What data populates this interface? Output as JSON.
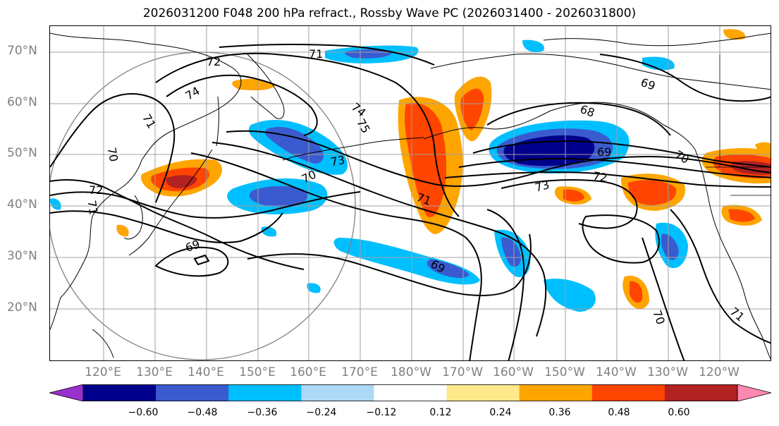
{
  "title": "2026031200 F048 200 hPa refract., Rossby Wave PC (2026031400 - 2026031800)",
  "lat_labels": [
    "70°N",
    "60°N",
    "50°N",
    "40°N",
    "30°N",
    "20°N"
  ],
  "lon_labels": [
    "120°E",
    "130°E",
    "140°E",
    "150°E",
    "160°E",
    "170°E",
    "180°W",
    "170°W",
    "160°W",
    "150°W",
    "140°W",
    "130°W",
    "120°W"
  ],
  "contour_labels": [
    "72",
    "71",
    "74",
    "71",
    "70",
    "72",
    "71",
    "69",
    "74",
    "75",
    "73",
    "70",
    "71",
    "69",
    "68",
    "69",
    "70",
    "72",
    "73",
    "69",
    "70",
    "71"
  ],
  "colorbar": {
    "ticks": [
      "−0.60",
      "−0.48",
      "−0.36",
      "−0.24",
      "−0.12",
      "0.12",
      "0.24",
      "0.36",
      "0.48",
      "0.60"
    ],
    "colors": [
      "#9932cc",
      "#00008b",
      "#3a5bd0",
      "#00bfff",
      "#add8f6",
      "#ffffff",
      "#ffe98a",
      "#ffa500",
      "#ff4500",
      "#b22222",
      "#ff88b0"
    ]
  },
  "colors": {
    "coast": "#000000",
    "contour": "#000000",
    "grid": "#a0a0a0",
    "circle": "#808080"
  }
}
